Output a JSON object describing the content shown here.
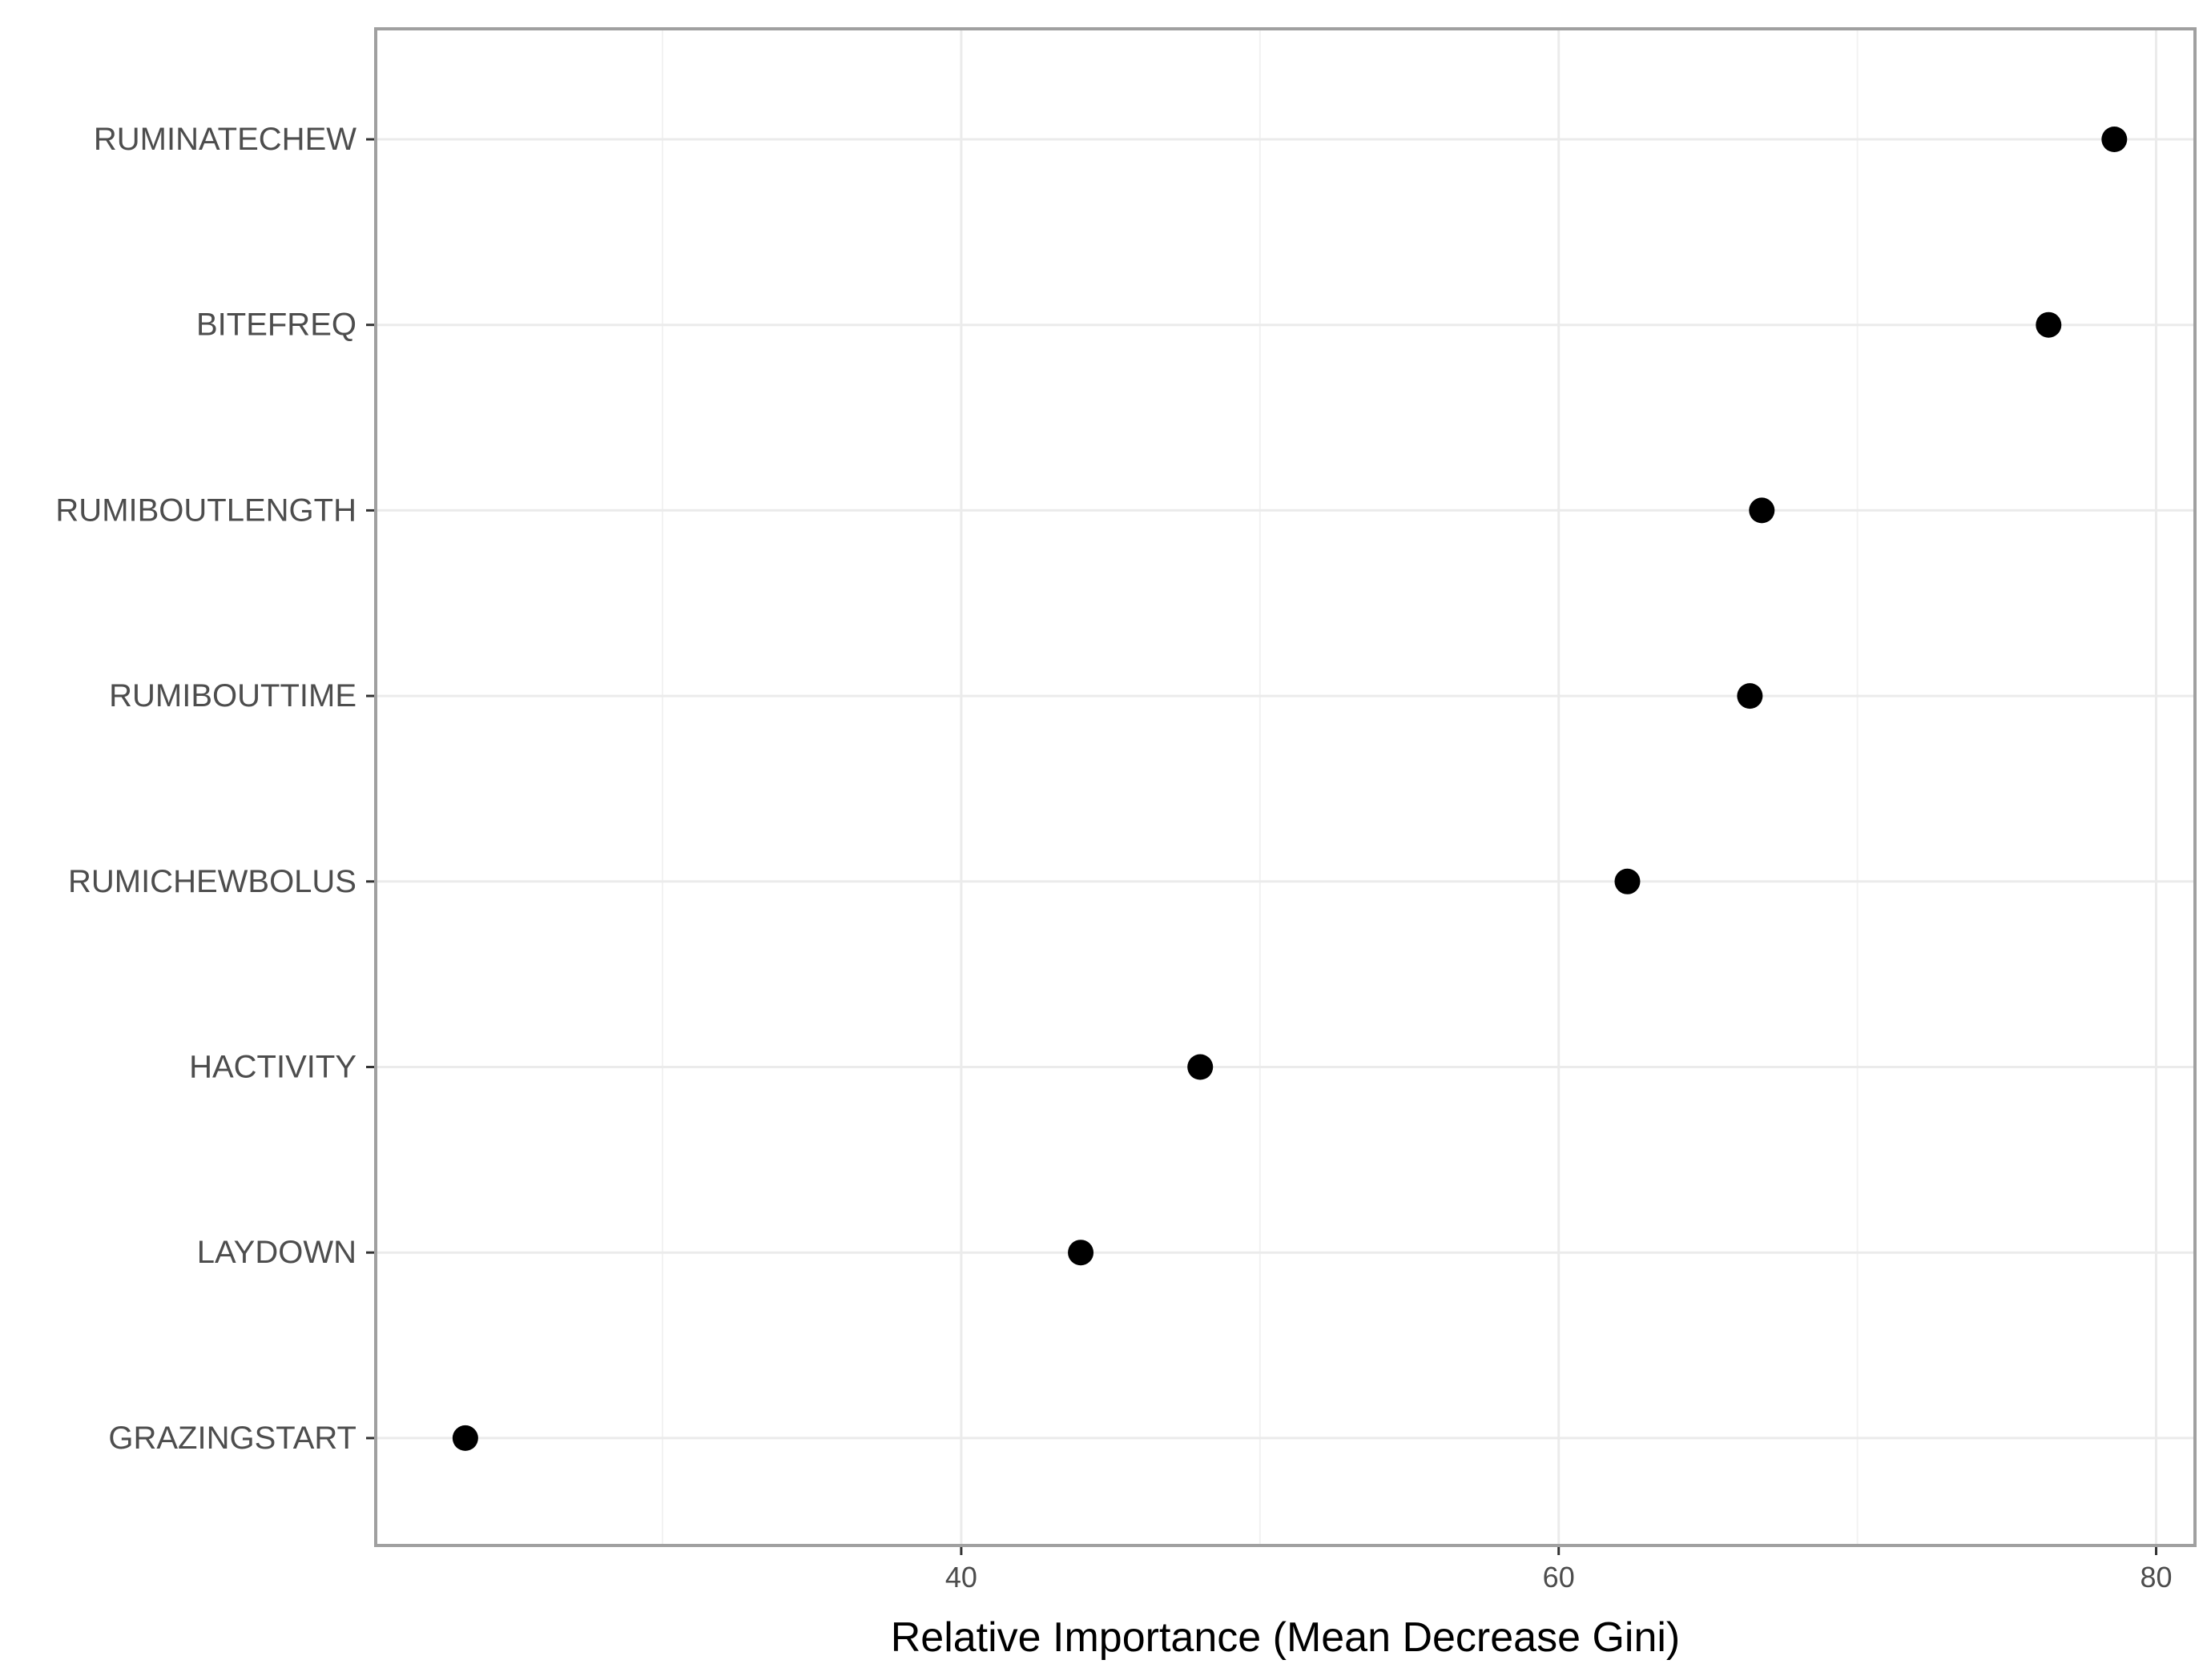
{
  "chart_data": {
    "type": "scatter",
    "title": "",
    "xlabel": "Relative Importance (Mean Decrease Gini)",
    "ylabel": "",
    "xlim": [
      20.4,
      81.3
    ],
    "x_ticks": [
      "40",
      "60",
      "80"
    ],
    "x_tick_values": [
      40,
      60,
      80
    ],
    "x_minor_grid": [
      30,
      50,
      70
    ],
    "grid": true,
    "legend": "none",
    "categories": [
      "RUMINATECHEW",
      "BITEFREQ",
      "RUMIBOUTLENGTH",
      "RUMIBOUTTIME",
      "RUMICHEWBOLUS",
      "HACTIVITY",
      "LAYDOWN",
      "GRAZINGSTART"
    ],
    "values": [
      78.6,
      76.4,
      66.8,
      66.4,
      62.3,
      48.0,
      44.0,
      23.4
    ],
    "colors": {
      "point": "#000000",
      "panel_border": "#a0a0a0",
      "grid_major": "#ebebeb",
      "grid_minor": "#f2f2f2",
      "tick_label": "#4d4d4d",
      "axis_title": "#000000"
    }
  }
}
